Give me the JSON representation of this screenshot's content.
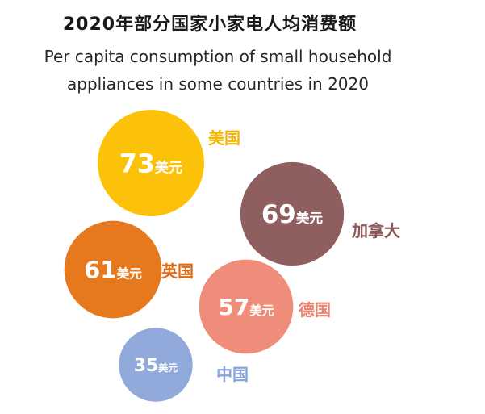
{
  "title": "2020年部分国家小家电人均消费额",
  "subtitle_line1": "Per capita consumption of small household",
  "subtitle_line2": "appliances in some countries in 2020",
  "chart_data": {
    "type": "bubble",
    "unit": "美元",
    "items": [
      {
        "country": "美国",
        "value": 73,
        "color": "#FCC20A",
        "label_color": "#F5B400"
      },
      {
        "country": "加拿大",
        "value": 69,
        "color": "#8F5F60",
        "label_color": "#8A5758"
      },
      {
        "country": "英国",
        "value": 61,
        "color": "#E6781E",
        "label_color": "#E06A12"
      },
      {
        "country": "德国",
        "value": 57,
        "color": "#F08C7A",
        "label_color": "#EB8472"
      },
      {
        "country": "中国",
        "value": 35,
        "color": "#91A9DB",
        "label_color": "#86A2DA"
      }
    ]
  }
}
